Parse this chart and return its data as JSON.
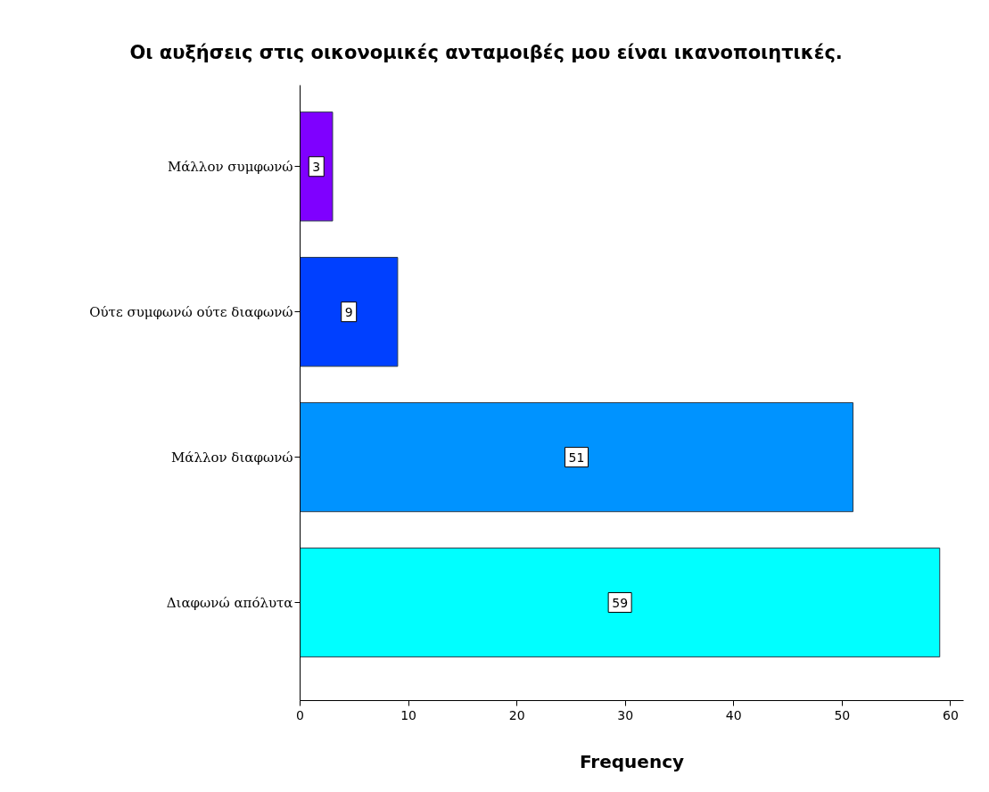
{
  "chart_data": {
    "type": "bar",
    "orientation": "horizontal",
    "title": "Οι αυξήσεις στις οικονομικές ανταμοιβές μου είναι ικανοποιητικές.",
    "xlabel": "Frequency",
    "categories": [
      "Μάλλον συμφωνώ",
      "Ούτε συμφωνώ ούτε διαφωνώ",
      "Μάλλον διαφωνώ",
      "Διαφωνώ απόλυτα"
    ],
    "values": [
      3,
      9,
      51,
      59
    ],
    "colors": [
      "#7f00ff",
      "#0040ff",
      "#0093ff",
      "#00ffff"
    ],
    "xlim": [
      0,
      61.2
    ],
    "xticks": [
      0,
      10,
      20,
      30,
      40,
      50,
      60
    ],
    "data_labels": true,
    "grid": false
  }
}
